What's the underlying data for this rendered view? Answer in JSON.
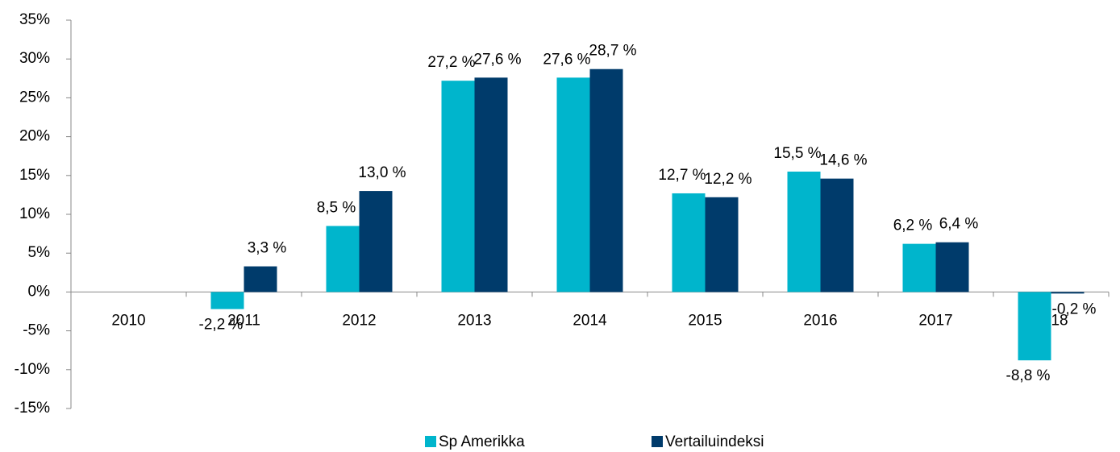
{
  "chart_data": {
    "type": "bar",
    "categories": [
      "2010",
      "2011",
      "2012",
      "2013",
      "2014",
      "2015",
      "2016",
      "2017",
      "2018"
    ],
    "series": [
      {
        "name": "Sp Amerikka",
        "color": "#00b5cc",
        "values": [
          null,
          -2.2,
          8.5,
          27.2,
          27.6,
          12.7,
          15.5,
          6.2,
          -8.8
        ],
        "value_labels": [
          null,
          "-2,2 %",
          "8,5 %",
          "27,2 %",
          "27,6 %",
          "12,7 %",
          "15,5 %",
          "6,2 %",
          "-8,8 %"
        ]
      },
      {
        "name": "Vertailuindeksi",
        "color": "#003b6b",
        "values": [
          null,
          3.3,
          13.0,
          27.6,
          28.7,
          12.2,
          14.6,
          6.4,
          -0.2
        ],
        "value_labels": [
          null,
          "3,3 %",
          "13,0 %",
          "27,6 %",
          "28,7 %",
          "12,2 %",
          "14,6 %",
          "6,4 %",
          "-0,2 %"
        ]
      }
    ],
    "ylim": [
      -15,
      35
    ],
    "yticks": [
      {
        "value": -15,
        "label": "-15%"
      },
      {
        "value": -10,
        "label": "-10%"
      },
      {
        "value": -5,
        "label": "-5%"
      },
      {
        "value": 0,
        "label": "0%"
      },
      {
        "value": 5,
        "label": "5%"
      },
      {
        "value": 10,
        "label": "10%"
      },
      {
        "value": 15,
        "label": "15%"
      },
      {
        "value": 20,
        "label": "20%"
      },
      {
        "value": 25,
        "label": "25%"
      },
      {
        "value": 30,
        "label": "30%"
      },
      {
        "value": 35,
        "label": "35%"
      }
    ],
    "legend": "bottom"
  }
}
